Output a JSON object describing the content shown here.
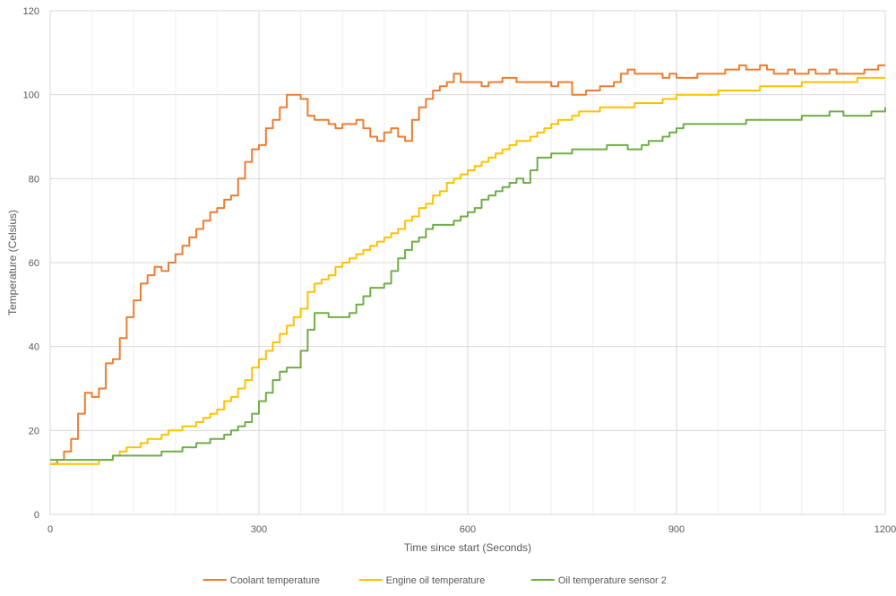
{
  "chart_data": {
    "type": "line",
    "xlabel": "Time since start (Seconds)",
    "ylabel": "Temperature (Celsius)",
    "xlim": [
      0,
      1200
    ],
    "ylim": [
      0,
      120
    ],
    "xticks": [
      0,
      300,
      600,
      900,
      1200
    ],
    "yticks": [
      0,
      20,
      40,
      60,
      80,
      100,
      120
    ],
    "grid": true,
    "legend_position": "bottom",
    "series": [
      {
        "name": "Coolant temperature",
        "color": "#ED7D31",
        "points": [
          [
            0,
            12
          ],
          [
            10,
            13
          ],
          [
            20,
            15
          ],
          [
            30,
            18
          ],
          [
            40,
            24
          ],
          [
            50,
            29
          ],
          [
            60,
            28
          ],
          [
            70,
            30
          ],
          [
            80,
            36
          ],
          [
            90,
            37
          ],
          [
            100,
            42
          ],
          [
            110,
            47
          ],
          [
            120,
            51
          ],
          [
            130,
            55
          ],
          [
            140,
            57
          ],
          [
            150,
            59
          ],
          [
            160,
            58
          ],
          [
            170,
            60
          ],
          [
            180,
            62
          ],
          [
            190,
            64
          ],
          [
            200,
            66
          ],
          [
            210,
            68
          ],
          [
            220,
            70
          ],
          [
            230,
            72
          ],
          [
            240,
            73
          ],
          [
            250,
            75
          ],
          [
            260,
            76
          ],
          [
            270,
            80
          ],
          [
            280,
            84
          ],
          [
            290,
            87
          ],
          [
            300,
            88
          ],
          [
            310,
            92
          ],
          [
            320,
            94
          ],
          [
            330,
            97
          ],
          [
            340,
            100
          ],
          [
            350,
            100
          ],
          [
            360,
            99
          ],
          [
            370,
            95
          ],
          [
            380,
            94
          ],
          [
            390,
            94
          ],
          [
            400,
            93
          ],
          [
            410,
            92
          ],
          [
            420,
            93
          ],
          [
            430,
            93
          ],
          [
            440,
            94
          ],
          [
            450,
            92
          ],
          [
            460,
            90
          ],
          [
            470,
            89
          ],
          [
            480,
            91
          ],
          [
            490,
            92
          ],
          [
            500,
            90
          ],
          [
            510,
            89
          ],
          [
            520,
            94
          ],
          [
            530,
            97
          ],
          [
            540,
            99
          ],
          [
            550,
            101
          ],
          [
            560,
            102
          ],
          [
            570,
            103
          ],
          [
            580,
            105
          ],
          [
            590,
            103
          ],
          [
            600,
            103
          ],
          [
            610,
            103
          ],
          [
            620,
            102
          ],
          [
            630,
            103
          ],
          [
            640,
            103
          ],
          [
            650,
            104
          ],
          [
            660,
            104
          ],
          [
            670,
            103
          ],
          [
            680,
            103
          ],
          [
            690,
            103
          ],
          [
            700,
            103
          ],
          [
            710,
            103
          ],
          [
            720,
            102
          ],
          [
            730,
            103
          ],
          [
            740,
            103
          ],
          [
            750,
            100
          ],
          [
            760,
            100
          ],
          [
            770,
            101
          ],
          [
            780,
            101
          ],
          [
            790,
            102
          ],
          [
            800,
            102
          ],
          [
            810,
            103
          ],
          [
            820,
            105
          ],
          [
            830,
            106
          ],
          [
            840,
            105
          ],
          [
            850,
            105
          ],
          [
            860,
            105
          ],
          [
            870,
            105
          ],
          [
            880,
            104
          ],
          [
            890,
            105
          ],
          [
            900,
            104
          ],
          [
            910,
            104
          ],
          [
            920,
            104
          ],
          [
            930,
            105
          ],
          [
            940,
            105
          ],
          [
            950,
            105
          ],
          [
            960,
            105
          ],
          [
            970,
            106
          ],
          [
            980,
            106
          ],
          [
            990,
            107
          ],
          [
            1000,
            106
          ],
          [
            1010,
            106
          ],
          [
            1020,
            107
          ],
          [
            1030,
            106
          ],
          [
            1040,
            105
          ],
          [
            1050,
            105
          ],
          [
            1060,
            106
          ],
          [
            1070,
            105
          ],
          [
            1080,
            105
          ],
          [
            1090,
            106
          ],
          [
            1100,
            105
          ],
          [
            1110,
            105
          ],
          [
            1120,
            106
          ],
          [
            1130,
            105
          ],
          [
            1140,
            105
          ],
          [
            1150,
            105
          ],
          [
            1160,
            105
          ],
          [
            1170,
            106
          ],
          [
            1180,
            106
          ],
          [
            1190,
            107
          ],
          [
            1200,
            107
          ]
        ]
      },
      {
        "name": "Engine oil temperature",
        "color": "#FFC000",
        "points": [
          [
            0,
            12
          ],
          [
            65,
            12
          ],
          [
            70,
            13
          ],
          [
            90,
            14
          ],
          [
            100,
            15
          ],
          [
            110,
            16
          ],
          [
            120,
            16
          ],
          [
            130,
            17
          ],
          [
            140,
            18
          ],
          [
            150,
            18
          ],
          [
            160,
            19
          ],
          [
            170,
            20
          ],
          [
            180,
            20
          ],
          [
            190,
            21
          ],
          [
            200,
            21
          ],
          [
            210,
            22
          ],
          [
            220,
            23
          ],
          [
            230,
            24
          ],
          [
            240,
            25
          ],
          [
            250,
            27
          ],
          [
            260,
            28
          ],
          [
            270,
            30
          ],
          [
            280,
            32
          ],
          [
            290,
            35
          ],
          [
            300,
            37
          ],
          [
            310,
            39
          ],
          [
            320,
            41
          ],
          [
            330,
            43
          ],
          [
            340,
            45
          ],
          [
            350,
            47
          ],
          [
            360,
            49
          ],
          [
            370,
            53
          ],
          [
            380,
            55
          ],
          [
            390,
            56
          ],
          [
            400,
            57
          ],
          [
            410,
            59
          ],
          [
            420,
            60
          ],
          [
            430,
            61
          ],
          [
            440,
            62
          ],
          [
            450,
            63
          ],
          [
            460,
            64
          ],
          [
            470,
            65
          ],
          [
            480,
            66
          ],
          [
            490,
            67
          ],
          [
            500,
            68
          ],
          [
            510,
            70
          ],
          [
            520,
            71
          ],
          [
            530,
            73
          ],
          [
            540,
            74
          ],
          [
            550,
            76
          ],
          [
            560,
            77
          ],
          [
            570,
            79
          ],
          [
            580,
            80
          ],
          [
            590,
            81
          ],
          [
            600,
            82
          ],
          [
            610,
            83
          ],
          [
            620,
            84
          ],
          [
            630,
            85
          ],
          [
            640,
            86
          ],
          [
            650,
            87
          ],
          [
            660,
            88
          ],
          [
            670,
            89
          ],
          [
            680,
            89
          ],
          [
            690,
            90
          ],
          [
            700,
            91
          ],
          [
            710,
            92
          ],
          [
            720,
            93
          ],
          [
            730,
            94
          ],
          [
            740,
            94
          ],
          [
            750,
            95
          ],
          [
            760,
            96
          ],
          [
            770,
            96
          ],
          [
            780,
            96
          ],
          [
            790,
            97
          ],
          [
            800,
            97
          ],
          [
            820,
            97
          ],
          [
            840,
            98
          ],
          [
            860,
            98
          ],
          [
            880,
            99
          ],
          [
            900,
            100
          ],
          [
            920,
            100
          ],
          [
            940,
            100
          ],
          [
            960,
            101
          ],
          [
            980,
            101
          ],
          [
            1000,
            101
          ],
          [
            1020,
            102
          ],
          [
            1040,
            102
          ],
          [
            1060,
            102
          ],
          [
            1080,
            103
          ],
          [
            1100,
            103
          ],
          [
            1120,
            103
          ],
          [
            1140,
            103
          ],
          [
            1160,
            104
          ],
          [
            1180,
            104
          ],
          [
            1200,
            104
          ]
        ]
      },
      {
        "name": "Oil temperature sensor 2",
        "color": "#70AD47",
        "points": [
          [
            0,
            13
          ],
          [
            80,
            13
          ],
          [
            90,
            14
          ],
          [
            150,
            14
          ],
          [
            160,
            15
          ],
          [
            180,
            15
          ],
          [
            190,
            16
          ],
          [
            200,
            16
          ],
          [
            210,
            17
          ],
          [
            220,
            17
          ],
          [
            230,
            18
          ],
          [
            240,
            18
          ],
          [
            250,
            19
          ],
          [
            260,
            20
          ],
          [
            270,
            21
          ],
          [
            280,
            22
          ],
          [
            290,
            24
          ],
          [
            300,
            27
          ],
          [
            310,
            29
          ],
          [
            320,
            32
          ],
          [
            330,
            34
          ],
          [
            340,
            35
          ],
          [
            350,
            35
          ],
          [
            360,
            39
          ],
          [
            370,
            44
          ],
          [
            380,
            48
          ],
          [
            390,
            48
          ],
          [
            400,
            47
          ],
          [
            410,
            47
          ],
          [
            420,
            47
          ],
          [
            430,
            48
          ],
          [
            440,
            50
          ],
          [
            450,
            52
          ],
          [
            460,
            54
          ],
          [
            470,
            54
          ],
          [
            480,
            55
          ],
          [
            490,
            58
          ],
          [
            500,
            61
          ],
          [
            510,
            63
          ],
          [
            520,
            65
          ],
          [
            530,
            66
          ],
          [
            540,
            68
          ],
          [
            550,
            69
          ],
          [
            560,
            69
          ],
          [
            570,
            69
          ],
          [
            580,
            70
          ],
          [
            590,
            71
          ],
          [
            600,
            72
          ],
          [
            610,
            73
          ],
          [
            620,
            75
          ],
          [
            630,
            76
          ],
          [
            640,
            77
          ],
          [
            650,
            78
          ],
          [
            660,
            79
          ],
          [
            670,
            80
          ],
          [
            680,
            79
          ],
          [
            690,
            82
          ],
          [
            700,
            85
          ],
          [
            710,
            85
          ],
          [
            720,
            86
          ],
          [
            730,
            86
          ],
          [
            740,
            86
          ],
          [
            750,
            87
          ],
          [
            760,
            87
          ],
          [
            770,
            87
          ],
          [
            780,
            87
          ],
          [
            790,
            87
          ],
          [
            800,
            88
          ],
          [
            810,
            88
          ],
          [
            820,
            88
          ],
          [
            830,
            87
          ],
          [
            840,
            87
          ],
          [
            850,
            88
          ],
          [
            860,
            89
          ],
          [
            870,
            89
          ],
          [
            880,
            90
          ],
          [
            890,
            91
          ],
          [
            900,
            92
          ],
          [
            910,
            93
          ],
          [
            920,
            93
          ],
          [
            940,
            93
          ],
          [
            960,
            93
          ],
          [
            980,
            93
          ],
          [
            1000,
            94
          ],
          [
            1020,
            94
          ],
          [
            1040,
            94
          ],
          [
            1060,
            94
          ],
          [
            1080,
            95
          ],
          [
            1100,
            95
          ],
          [
            1120,
            96
          ],
          [
            1140,
            95
          ],
          [
            1160,
            95
          ],
          [
            1180,
            96
          ],
          [
            1190,
            96
          ],
          [
            1200,
            97
          ]
        ]
      }
    ]
  }
}
